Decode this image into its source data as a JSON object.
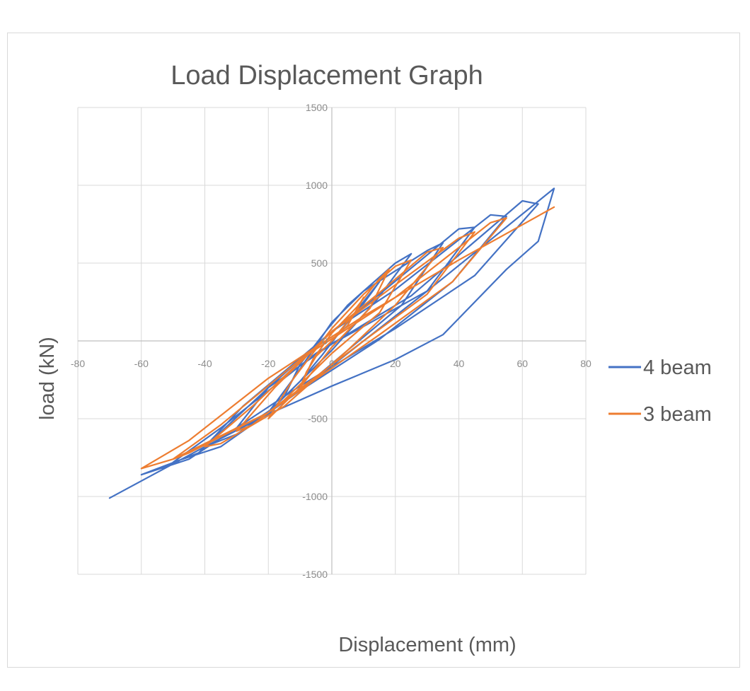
{
  "chart_data": {
    "type": "line",
    "title": "Load Displacement Graph",
    "xlabel": "Displacement (mm)",
    "ylabel": "load (kN)",
    "xlim": [
      -80,
      80
    ],
    "ylim": [
      -1500,
      1500
    ],
    "x_ticks": [
      -80,
      -60,
      -40,
      -20,
      0,
      20,
      40,
      60,
      80
    ],
    "y_ticks": [
      -1500,
      -1000,
      -500,
      0,
      500,
      1000,
      1500
    ],
    "grid": true,
    "legend_position": "right",
    "series": [
      {
        "name": "4 beam",
        "color": "#4472c4",
        "x": [
          0,
          10,
          15,
          6,
          -3,
          -10,
          -15,
          -10,
          -2,
          5,
          20,
          25,
          14,
          0,
          -14,
          -20,
          -12,
          0,
          10,
          30,
          35,
          22,
          5,
          -10,
          -25,
          -30,
          -20,
          0,
          15,
          40,
          45,
          30,
          10,
          -10,
          -30,
          -40,
          -28,
          0,
          20,
          50,
          55,
          38,
          15,
          -10,
          -35,
          -50,
          -35,
          -5,
          25,
          60,
          65,
          45,
          20,
          -10,
          -45,
          -60,
          -42,
          -20,
          0,
          30,
          70,
          65,
          55,
          35,
          20,
          0,
          -20,
          -40,
          -70
        ],
        "y": [
          0,
          240,
          380,
          150,
          -90,
          -260,
          -360,
          -150,
          60,
          230,
          500,
          560,
          260,
          -60,
          -340,
          -460,
          -240,
          120,
          320,
          580,
          630,
          230,
          -60,
          -320,
          -520,
          -560,
          -300,
          60,
          300,
          720,
          730,
          320,
          0,
          -320,
          -600,
          -680,
          -420,
          60,
          330,
          810,
          800,
          380,
          10,
          -320,
          -680,
          -780,
          -560,
          -80,
          290,
          900,
          880,
          420,
          80,
          -290,
          -760,
          -860,
          -720,
          -300,
          -20,
          320,
          980,
          640,
          460,
          40,
          -120,
          -290,
          -470,
          -680,
          -1010
        ]
      },
      {
        "name": "3 beam",
        "color": "#ed7d31",
        "x": [
          0,
          8,
          10,
          5,
          -5,
          -8,
          -10,
          -6,
          0,
          8,
          15,
          18,
          12,
          0,
          -10,
          -16,
          -20,
          -12,
          0,
          10,
          20,
          25,
          15,
          0,
          -15,
          -25,
          -30,
          -18,
          0,
          15,
          30,
          35,
          20,
          5,
          -15,
          -35,
          -40,
          -25,
          0,
          20,
          40,
          45,
          30,
          10,
          -20,
          -45,
          -50,
          -35,
          -10,
          20,
          50,
          55,
          38,
          15,
          -20,
          -50,
          -60,
          -45,
          -20,
          10,
          40,
          70
        ],
        "y": [
          0,
          200,
          280,
          100,
          -100,
          -200,
          -300,
          -120,
          50,
          220,
          400,
          460,
          210,
          -40,
          -300,
          -420,
          -500,
          -240,
          80,
          300,
          480,
          520,
          180,
          -80,
          -380,
          -540,
          -580,
          -300,
          60,
          310,
          570,
          600,
          230,
          -60,
          -420,
          -660,
          -680,
          -420,
          60,
          360,
          660,
          700,
          300,
          0,
          -460,
          -720,
          -760,
          -540,
          -120,
          280,
          760,
          790,
          380,
          40,
          -460,
          -760,
          -820,
          -640,
          -240,
          160,
          520,
          860
        ]
      }
    ]
  }
}
